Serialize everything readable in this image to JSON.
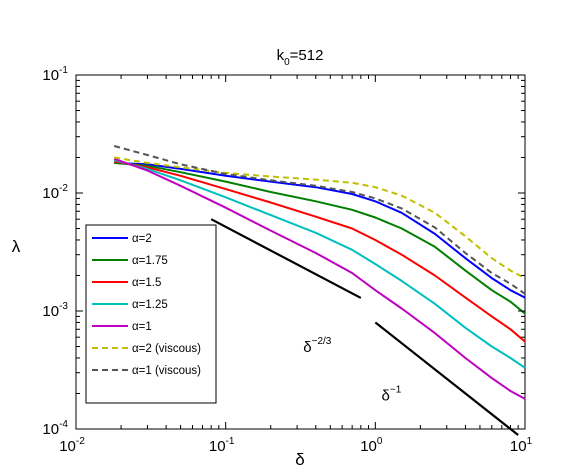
{
  "chart_data": {
    "type": "line",
    "title": "k",
    "title_subscript": "0",
    "title_suffix": "=512",
    "xlabel": "δ",
    "ylabel": "λ",
    "xscale": "log",
    "yscale": "log",
    "xlim": [
      0.01,
      10
    ],
    "ylim": [
      0.0001,
      0.1
    ],
    "grid": false,
    "legend_position": "lower-left",
    "x_ticks": [
      {
        "base": "10",
        "exp": "-2",
        "value": 0.01
      },
      {
        "base": "10",
        "exp": "-1",
        "value": 0.1
      },
      {
        "base": "10",
        "exp": "0",
        "value": 1
      },
      {
        "base": "10",
        "exp": "1",
        "value": 10
      }
    ],
    "y_ticks": [
      {
        "base": "10",
        "exp": "-4",
        "value": 0.0001
      },
      {
        "base": "10",
        "exp": "-3",
        "value": 0.001
      },
      {
        "base": "10",
        "exp": "-2",
        "value": 0.01
      },
      {
        "base": "10",
        "exp": "-1",
        "value": 0.1
      }
    ],
    "series": [
      {
        "name": "α=2",
        "color": "#0000ff",
        "dash": "solid",
        "x": [
          0.018,
          0.03,
          0.05,
          0.1,
          0.2,
          0.4,
          0.7,
          1.0,
          1.5,
          2.5,
          4,
          6,
          8,
          10
        ],
        "y": [
          0.018,
          0.0175,
          0.016,
          0.014,
          0.0125,
          0.0112,
          0.0098,
          0.0085,
          0.0068,
          0.0045,
          0.0028,
          0.0019,
          0.0015,
          0.0013
        ]
      },
      {
        "name": "α=1.75",
        "color": "#008000",
        "dash": "solid",
        "x": [
          0.018,
          0.03,
          0.05,
          0.1,
          0.2,
          0.4,
          0.7,
          1.0,
          1.5,
          2.5,
          4,
          6,
          8,
          10
        ],
        "y": [
          0.018,
          0.017,
          0.015,
          0.0125,
          0.0102,
          0.0085,
          0.0072,
          0.0062,
          0.005,
          0.0035,
          0.0022,
          0.0015,
          0.0012,
          0.00095
        ]
      },
      {
        "name": "α=1.5",
        "color": "#ff0000",
        "dash": "solid",
        "x": [
          0.018,
          0.03,
          0.05,
          0.1,
          0.2,
          0.4,
          0.7,
          1.0,
          1.5,
          2.5,
          4,
          6,
          8,
          10
        ],
        "y": [
          0.0185,
          0.0165,
          0.014,
          0.0108,
          0.0083,
          0.0063,
          0.005,
          0.004,
          0.003,
          0.002,
          0.0013,
          0.0009,
          0.0007,
          0.00055
        ]
      },
      {
        "name": "α=1.25",
        "color": "#00bfbf",
        "dash": "solid",
        "x": [
          0.018,
          0.03,
          0.05,
          0.1,
          0.2,
          0.4,
          0.7,
          1.0,
          1.5,
          2.5,
          4,
          6,
          8,
          10
        ],
        "y": [
          0.019,
          0.016,
          0.0128,
          0.0092,
          0.0065,
          0.0046,
          0.0033,
          0.0025,
          0.0018,
          0.00115,
          0.00072,
          0.0005,
          0.0004,
          0.00033
        ]
      },
      {
        "name": "α=1",
        "color": "#bf00bf",
        "dash": "solid",
        "x": [
          0.018,
          0.03,
          0.05,
          0.1,
          0.2,
          0.4,
          0.7,
          1.0,
          1.5,
          2.5,
          4,
          6,
          8,
          10
        ],
        "y": [
          0.0195,
          0.0155,
          0.0115,
          0.0075,
          0.0048,
          0.0031,
          0.0021,
          0.0015,
          0.00105,
          0.00065,
          0.0004,
          0.00027,
          0.00021,
          0.00018
        ]
      },
      {
        "name": "α=2 (viscous)",
        "color": "#bfbf00",
        "dash": "dashed",
        "x": [
          0.018,
          0.03,
          0.05,
          0.1,
          0.2,
          0.4,
          0.7,
          1.0,
          1.5,
          2.5,
          4,
          6,
          8,
          10
        ],
        "y": [
          0.02,
          0.018,
          0.0165,
          0.0148,
          0.0138,
          0.013,
          0.0122,
          0.0112,
          0.0095,
          0.0068,
          0.0043,
          0.0028,
          0.0022,
          0.0019
        ]
      },
      {
        "name": "α=1 (viscous)",
        "color": "#555555",
        "dash": "dashed",
        "x": [
          0.018,
          0.03,
          0.05,
          0.1,
          0.2,
          0.4,
          0.7,
          1.0,
          1.5,
          2.5,
          4,
          6,
          8,
          10
        ],
        "y": [
          0.025,
          0.021,
          0.0175,
          0.0145,
          0.0128,
          0.0115,
          0.0102,
          0.009,
          0.0074,
          0.0051,
          0.0031,
          0.0021,
          0.0017,
          0.0014
        ]
      }
    ],
    "reference_lines": [
      {
        "color": "#000000",
        "x": [
          0.08,
          0.8
        ],
        "y": [
          0.006,
          0.00129
        ]
      },
      {
        "color": "#000000",
        "x": [
          1.0,
          9.0
        ],
        "y": [
          0.0008,
          8.89e-05
        ]
      }
    ],
    "annotations": [
      {
        "base": "δ",
        "exp": "−2/3",
        "x": 0.33,
        "y": 0.00045
      },
      {
        "base": "δ",
        "exp": "−1",
        "x": 1.1,
        "y": 0.000175
      }
    ]
  }
}
